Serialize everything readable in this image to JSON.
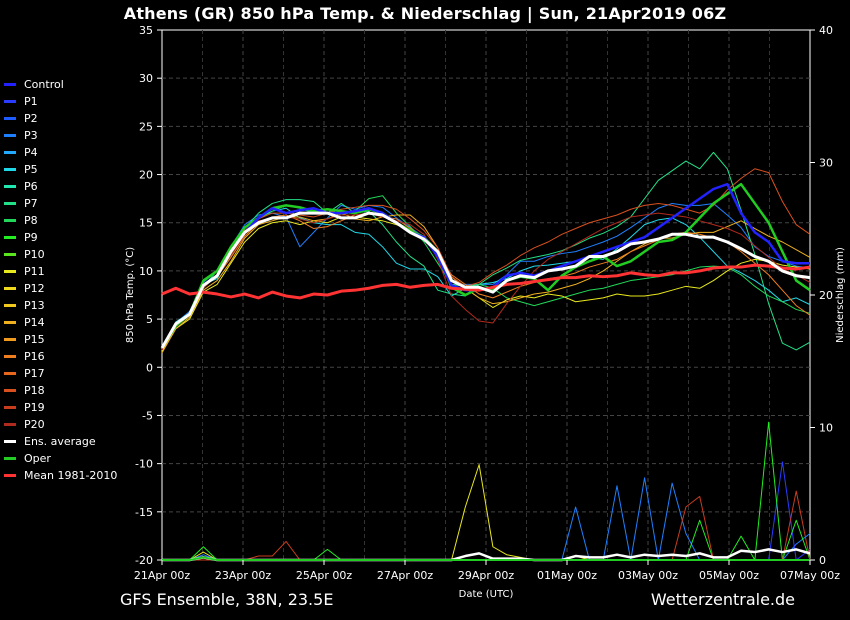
{
  "title": "Athens  (GR)  850 hPa Temp. & Niederschlag | Sun, 21Apr2019 06Z",
  "footer": {
    "left": "GFS Ensemble, 38N, 23.5E",
    "right": "Wetterzentrale.de"
  },
  "legend": [
    {
      "name": "Control",
      "color": "#2222ff"
    },
    {
      "name": "P1",
      "color": "#2a3cff"
    },
    {
      "name": "P2",
      "color": "#1f5cff"
    },
    {
      "name": "P3",
      "color": "#1f80ff"
    },
    {
      "name": "P4",
      "color": "#22a8ff"
    },
    {
      "name": "P5",
      "color": "#1fd8e8"
    },
    {
      "name": "P6",
      "color": "#20e8b0"
    },
    {
      "name": "P7",
      "color": "#22e088"
    },
    {
      "name": "P8",
      "color": "#22d85a"
    },
    {
      "name": "P9",
      "color": "#22ee22"
    },
    {
      "name": "P10",
      "color": "#5ae61e"
    },
    {
      "name": "P11",
      "color": "#e8e81e"
    },
    {
      "name": "P12",
      "color": "#f0d81e"
    },
    {
      "name": "P13",
      "color": "#f0c81e"
    },
    {
      "name": "P14",
      "color": "#f0b01e"
    },
    {
      "name": "P15",
      "color": "#f09a1e"
    },
    {
      "name": "P16",
      "color": "#f07e1e"
    },
    {
      "name": "P17",
      "color": "#e8661e"
    },
    {
      "name": "P18",
      "color": "#d8501e"
    },
    {
      "name": "P19",
      "color": "#c83c1e"
    },
    {
      "name": "P20",
      "color": "#b02a1e"
    },
    {
      "name": "Ens. average",
      "color": "#ffffff"
    },
    {
      "name": "Oper",
      "color": "#22cc22"
    },
    {
      "name": "Mean 1981-2010",
      "color": "#ff3333"
    }
  ],
  "chart_data": {
    "type": "line",
    "ylabel_left": "850 hPa Temp. (°C)",
    "ylabel_right": "Niederschlag (mm)",
    "xlabel": "Date (UTC)",
    "ylim_left": [
      -20,
      35
    ],
    "ylim_right": [
      0,
      40
    ],
    "y_ticks_left": [
      -20,
      -15,
      -10,
      -5,
      0,
      5,
      10,
      15,
      20,
      25,
      30,
      35
    ],
    "y_ticks_right": [
      0,
      10,
      20,
      30,
      40
    ],
    "x_range_hours": [
      0,
      384
    ],
    "x_ticks": [
      {
        "h": 0,
        "label": "21Apr 00z"
      },
      {
        "h": 48,
        "label": "23Apr 00z"
      },
      {
        "h": 96,
        "label": "25Apr 00z"
      },
      {
        "h": 144,
        "label": "27Apr 00z"
      },
      {
        "h": 192,
        "label": "29Apr 00z"
      },
      {
        "h": 240,
        "label": "01May 00z"
      },
      {
        "h": 288,
        "label": "03May 00z"
      },
      {
        "h": 336,
        "label": "05May 00z"
      },
      {
        "h": 384,
        "label": "07May 00z"
      }
    ],
    "grid": true,
    "temperature_series": [
      {
        "name": "Ens. average",
        "values": [
          2,
          4.5,
          5.5,
          8.5,
          9.5,
          12,
          14,
          15,
          15.5,
          15.5,
          16,
          16,
          16,
          15.5,
          15.5,
          16,
          15.8,
          15,
          14,
          13.3,
          12,
          9,
          8.3,
          8.3,
          7.8,
          9,
          9.5,
          9.3,
          10,
          10.2,
          10.5,
          11.5,
          11.5,
          12,
          12.8,
          13,
          13.3,
          13.8,
          13.8,
          13.5,
          13.5,
          13,
          12.3,
          11.5,
          11,
          10,
          9.5,
          9.3
        ]
      },
      {
        "name": "Oper",
        "values": [
          2,
          4.3,
          5.5,
          9,
          10,
          12.5,
          14.5,
          15.5,
          16.5,
          16.8,
          16.6,
          16.2,
          16.4,
          16.2,
          16,
          16.4,
          16,
          15,
          14.2,
          13.5,
          12,
          8.3,
          7.5,
          8.2,
          8,
          9,
          9.4,
          9.2,
          8,
          9.5,
          10.4,
          11,
          11.5,
          10.5,
          11,
          12,
          13,
          13.2,
          14,
          15.5,
          17,
          18,
          19,
          17,
          15,
          12,
          9,
          8
        ]
      },
      {
        "name": "Control",
        "values": [
          2,
          4.5,
          5.5,
          8.5,
          9.5,
          12,
          14,
          15.5,
          16.5,
          16,
          16.3,
          16.5,
          16,
          16,
          16.2,
          16.5,
          16,
          15,
          14,
          13.5,
          11.5,
          8.5,
          8,
          8,
          8.3,
          9.5,
          9.8,
          9.5,
          10,
          10.5,
          11,
          11.5,
          12,
          12.5,
          13,
          13.5,
          14.5,
          15.5,
          16.5,
          17.5,
          18.5,
          19,
          16,
          14,
          13,
          11,
          10.8,
          10.8
        ]
      },
      {
        "name": "Mean 1981-2010",
        "values": [
          7.6,
          8.2,
          7.6,
          7.8,
          7.6,
          7.3,
          7.6,
          7.2,
          7.8,
          7.4,
          7.2,
          7.6,
          7.5,
          7.9,
          8,
          8.2,
          8.5,
          8.6,
          8.3,
          8.5,
          8.6,
          8.2,
          8.1,
          8,
          8.3,
          8.6,
          8.7,
          8.9,
          9.1,
          9.3,
          9.3,
          9.5,
          9.4,
          9.5,
          9.8,
          9.6,
          9.5,
          9.8,
          9.8,
          10,
          10.3,
          10.4,
          10.4,
          10.6,
          10.5,
          10.3,
          10.2,
          10.4
        ]
      },
      {
        "name": "P3",
        "values": [
          2,
          4.6,
          5.8,
          8.8,
          10,
          12.5,
          14.8,
          15.8,
          16,
          15.6,
          12.5,
          14,
          15.5,
          16.8,
          16.4,
          16.8,
          16.6,
          15.5,
          14.5,
          13.5,
          11.8,
          8.6,
          8.6,
          8.6,
          8.6,
          9.6,
          11,
          11,
          11.5,
          11.8,
          12,
          12.5,
          13,
          13.6,
          14.5,
          15.5,
          16.5,
          17,
          16.8,
          16.8,
          17,
          15.8,
          14.5,
          12.5,
          11.5,
          11,
          10.5,
          10.3
        ]
      },
      {
        "name": "P5",
        "values": [
          2,
          4.7,
          5.6,
          8.6,
          9.2,
          12,
          14.5,
          15.6,
          16.2,
          16.5,
          15.5,
          15,
          14.8,
          14.8,
          14,
          13.8,
          12.5,
          10.8,
          10.2,
          10.2,
          9.4,
          7.4,
          8.2,
          8.6,
          8.8,
          9.2,
          10,
          10.5,
          10.6,
          10.8,
          11,
          11.4,
          11.2,
          12.3,
          13.5,
          14.8,
          15.3,
          15.5,
          14.8,
          13.5,
          12,
          10.5,
          9.8,
          9,
          8,
          6.8,
          7.2,
          6.5
        ]
      },
      {
        "name": "P7",
        "values": [
          2,
          4.4,
          5.6,
          8.4,
          10,
          11.5,
          14.4,
          16,
          17,
          17.4,
          17.4,
          17.2,
          16,
          17,
          16,
          16.2,
          14.8,
          13,
          11.5,
          10.5,
          8,
          7.6,
          7.4,
          8.6,
          9.6,
          10.3,
          11.1,
          11.4,
          11.7,
          12.1,
          12.7,
          13.4,
          13.9,
          14.6,
          15.6,
          17.5,
          19.4,
          20.4,
          21.4,
          20.6,
          22.3,
          20.6,
          16.3,
          11.7,
          6.6,
          2.5,
          1.8,
          2.6
        ]
      },
      {
        "name": "P8",
        "values": [
          2,
          4.2,
          5.4,
          8.2,
          9.6,
          11.6,
          14,
          15.4,
          16.2,
          16.8,
          16.5,
          16,
          16.4,
          15.8,
          16.2,
          17.5,
          17.8,
          16,
          14.6,
          13,
          10.8,
          8.6,
          8.4,
          8.6,
          8.2,
          7.2,
          6.8,
          6.4,
          6.8,
          7.2,
          7.6,
          8,
          8.2,
          8.6,
          9,
          9.2,
          9.4,
          9.6,
          10,
          10.4,
          10.5,
          10.4,
          9.6,
          8.4,
          7.4,
          6.8,
          6,
          5.6
        ]
      },
      {
        "name": "P11",
        "values": [
          1.6,
          4,
          5,
          7.8,
          8.6,
          10.8,
          13,
          14.4,
          15,
          15.2,
          14.8,
          15.2,
          15,
          15.6,
          15.6,
          15.4,
          15.2,
          14.8,
          14.2,
          13.6,
          11.8,
          9.4,
          8.2,
          7.2,
          6.2,
          7,
          7.4,
          7.2,
          7.6,
          7.4,
          6.8,
          7,
          7.2,
          7.6,
          7.4,
          7.4,
          7.6,
          8,
          8.4,
          8.2,
          9,
          10,
          10.8,
          11.2,
          11,
          10.6,
          10.4,
          10.2
        ]
      },
      {
        "name": "P14",
        "values": [
          1.5,
          4,
          5.2,
          8,
          9,
          11,
          13.4,
          14.8,
          15.2,
          15.6,
          15.6,
          15.2,
          15.4,
          16,
          15.4,
          15.2,
          15.6,
          15.8,
          15.8,
          14.6,
          12.4,
          9.4,
          8.2,
          7.2,
          6.6,
          6.8,
          7.2,
          7.6,
          7.8,
          8.2,
          8.6,
          9.2,
          10,
          11,
          12,
          12.8,
          13.4,
          13.4,
          13.8,
          14,
          14,
          14.6,
          15.2,
          14.4,
          13.6,
          13,
          12.2,
          11.4
        ]
      },
      {
        "name": "P16",
        "values": [
          1.8,
          4.2,
          5.4,
          8.4,
          9.4,
          11.4,
          13.6,
          15,
          15.6,
          15.8,
          15.2,
          14.4,
          14.6,
          15.2,
          15.8,
          16,
          15.6,
          15.4,
          14.4,
          13.4,
          11.8,
          9.6,
          8.6,
          7.6,
          7.2,
          7.8,
          8.4,
          8.8,
          9.2,
          9.4,
          9.8,
          10.4,
          10.8,
          11.2,
          12,
          12.6,
          13.2,
          13.8,
          14,
          13.8,
          13.4,
          13,
          12,
          10.8,
          9.6,
          8,
          6.4,
          5.4
        ]
      },
      {
        "name": "P18",
        "values": [
          1.8,
          4.3,
          5.4,
          8.4,
          9.4,
          11.8,
          14.2,
          15.4,
          16,
          16,
          15.8,
          15.6,
          16,
          16.4,
          16.6,
          16.8,
          16.8,
          16.4,
          15.4,
          14.2,
          12.4,
          9.4,
          8.4,
          8.8,
          9.8,
          10.6,
          11.6,
          12.4,
          13,
          13.8,
          14.4,
          15,
          15.4,
          15.8,
          16.4,
          16.8,
          17,
          16.8,
          16.4,
          16,
          16.8,
          18.4,
          19.6,
          20.6,
          20.2,
          17.2,
          14.8,
          13.8
        ]
      },
      {
        "name": "P20",
        "values": [
          1.8,
          4.3,
          5.6,
          8.2,
          9.6,
          11.6,
          13.8,
          15.2,
          15.4,
          15.6,
          15.4,
          15,
          15.4,
          15.8,
          15.8,
          16,
          15.6,
          15.2,
          14.8,
          13.8,
          11.2,
          7.4,
          6,
          4.8,
          4.6,
          6.6,
          8.4,
          10,
          11.2,
          12,
          12.8,
          13.6,
          14.4,
          15,
          15.6,
          15.8,
          16,
          15.8,
          15.6,
          15.2,
          14.8,
          14.4,
          13.8,
          12.6,
          11.4,
          10.2,
          9.6,
          8.8
        ]
      }
    ],
    "precip_series": [
      {
        "name": "P11",
        "values": [
          0,
          0,
          0,
          0.6,
          0,
          0,
          0,
          0,
          0,
          0,
          0,
          0,
          0,
          0,
          0,
          0,
          0,
          0,
          0,
          0,
          0,
          0,
          4,
          7.2,
          1,
          0.4,
          0.2,
          0,
          0,
          0,
          0.3,
          0,
          0,
          0,
          0,
          0,
          0,
          0,
          0,
          0,
          0,
          0,
          0,
          0,
          0,
          0,
          0,
          0
        ]
      },
      {
        "name": "P3",
        "values": [
          0,
          0,
          0,
          0.4,
          0,
          0,
          0,
          0,
          0,
          0,
          0,
          0,
          0,
          0,
          0,
          0,
          0,
          0,
          0,
          0,
          0,
          0,
          0,
          0,
          0,
          0,
          0,
          0,
          0,
          0,
          4,
          0,
          0,
          5.6,
          0,
          6.2,
          0,
          5.8,
          2,
          0,
          0,
          0,
          0,
          0,
          0,
          0,
          1.2,
          2
        ]
      },
      {
        "name": "P1",
        "values": [
          0,
          0,
          0,
          0,
          0,
          0,
          0,
          0,
          0,
          0,
          0,
          0,
          0,
          0,
          0,
          0,
          0,
          0,
          0,
          0,
          0,
          0,
          0,
          0,
          0,
          0,
          0,
          0,
          0,
          0,
          0,
          0,
          0,
          0,
          0,
          0,
          0,
          0,
          0,
          0,
          0,
          0,
          0,
          0,
          0,
          7.4,
          0,
          0.8
        ]
      },
      {
        "name": "P9",
        "values": [
          0,
          0,
          0,
          1,
          0,
          0,
          0,
          0,
          0,
          0,
          0,
          0,
          0.8,
          0,
          0,
          0,
          0,
          0,
          0,
          0,
          0,
          0,
          0,
          0,
          0,
          0,
          0,
          0,
          0,
          0,
          0,
          0,
          0,
          0,
          0,
          0,
          0,
          0,
          0,
          3,
          0,
          0,
          1.8,
          0,
          10.4,
          0,
          3,
          0
        ]
      },
      {
        "name": "P19",
        "values": [
          0,
          0,
          0,
          0,
          0,
          0,
          0,
          0.3,
          0.3,
          1.4,
          0,
          0,
          0,
          0,
          0,
          0,
          0,
          0,
          0,
          0,
          0,
          0,
          0,
          0,
          0,
          0,
          0,
          0,
          0,
          0,
          0,
          0,
          0,
          0,
          0,
          0,
          0,
          0,
          4,
          4.8,
          0,
          0,
          0,
          0,
          0,
          0,
          5.2,
          0
        ]
      },
      {
        "name": "Ens. average",
        "values": [
          0,
          0,
          0,
          0.2,
          0,
          0,
          0,
          0,
          0,
          0,
          0,
          0,
          0,
          0,
          0,
          0,
          0,
          0,
          0,
          0,
          0,
          0,
          0.3,
          0.5,
          0.1,
          0.1,
          0.1,
          0,
          0,
          0,
          0.3,
          0.2,
          0.2,
          0.4,
          0.2,
          0.4,
          0.3,
          0.4,
          0.3,
          0.5,
          0.2,
          0.2,
          0.7,
          0.6,
          0.8,
          0.6,
          0.8,
          0.5
        ]
      },
      {
        "name": "Oper",
        "values": [
          0,
          0,
          0,
          0.2,
          0,
          0,
          0,
          0,
          0,
          0,
          0,
          0,
          0,
          0,
          0,
          0,
          0,
          0,
          0,
          0,
          0,
          0,
          0,
          0,
          0,
          0,
          0,
          0,
          0,
          0,
          0,
          0,
          0,
          0,
          0,
          0,
          0,
          0,
          0,
          0,
          0,
          0,
          0,
          0,
          0,
          0,
          0,
          0
        ]
      }
    ]
  }
}
